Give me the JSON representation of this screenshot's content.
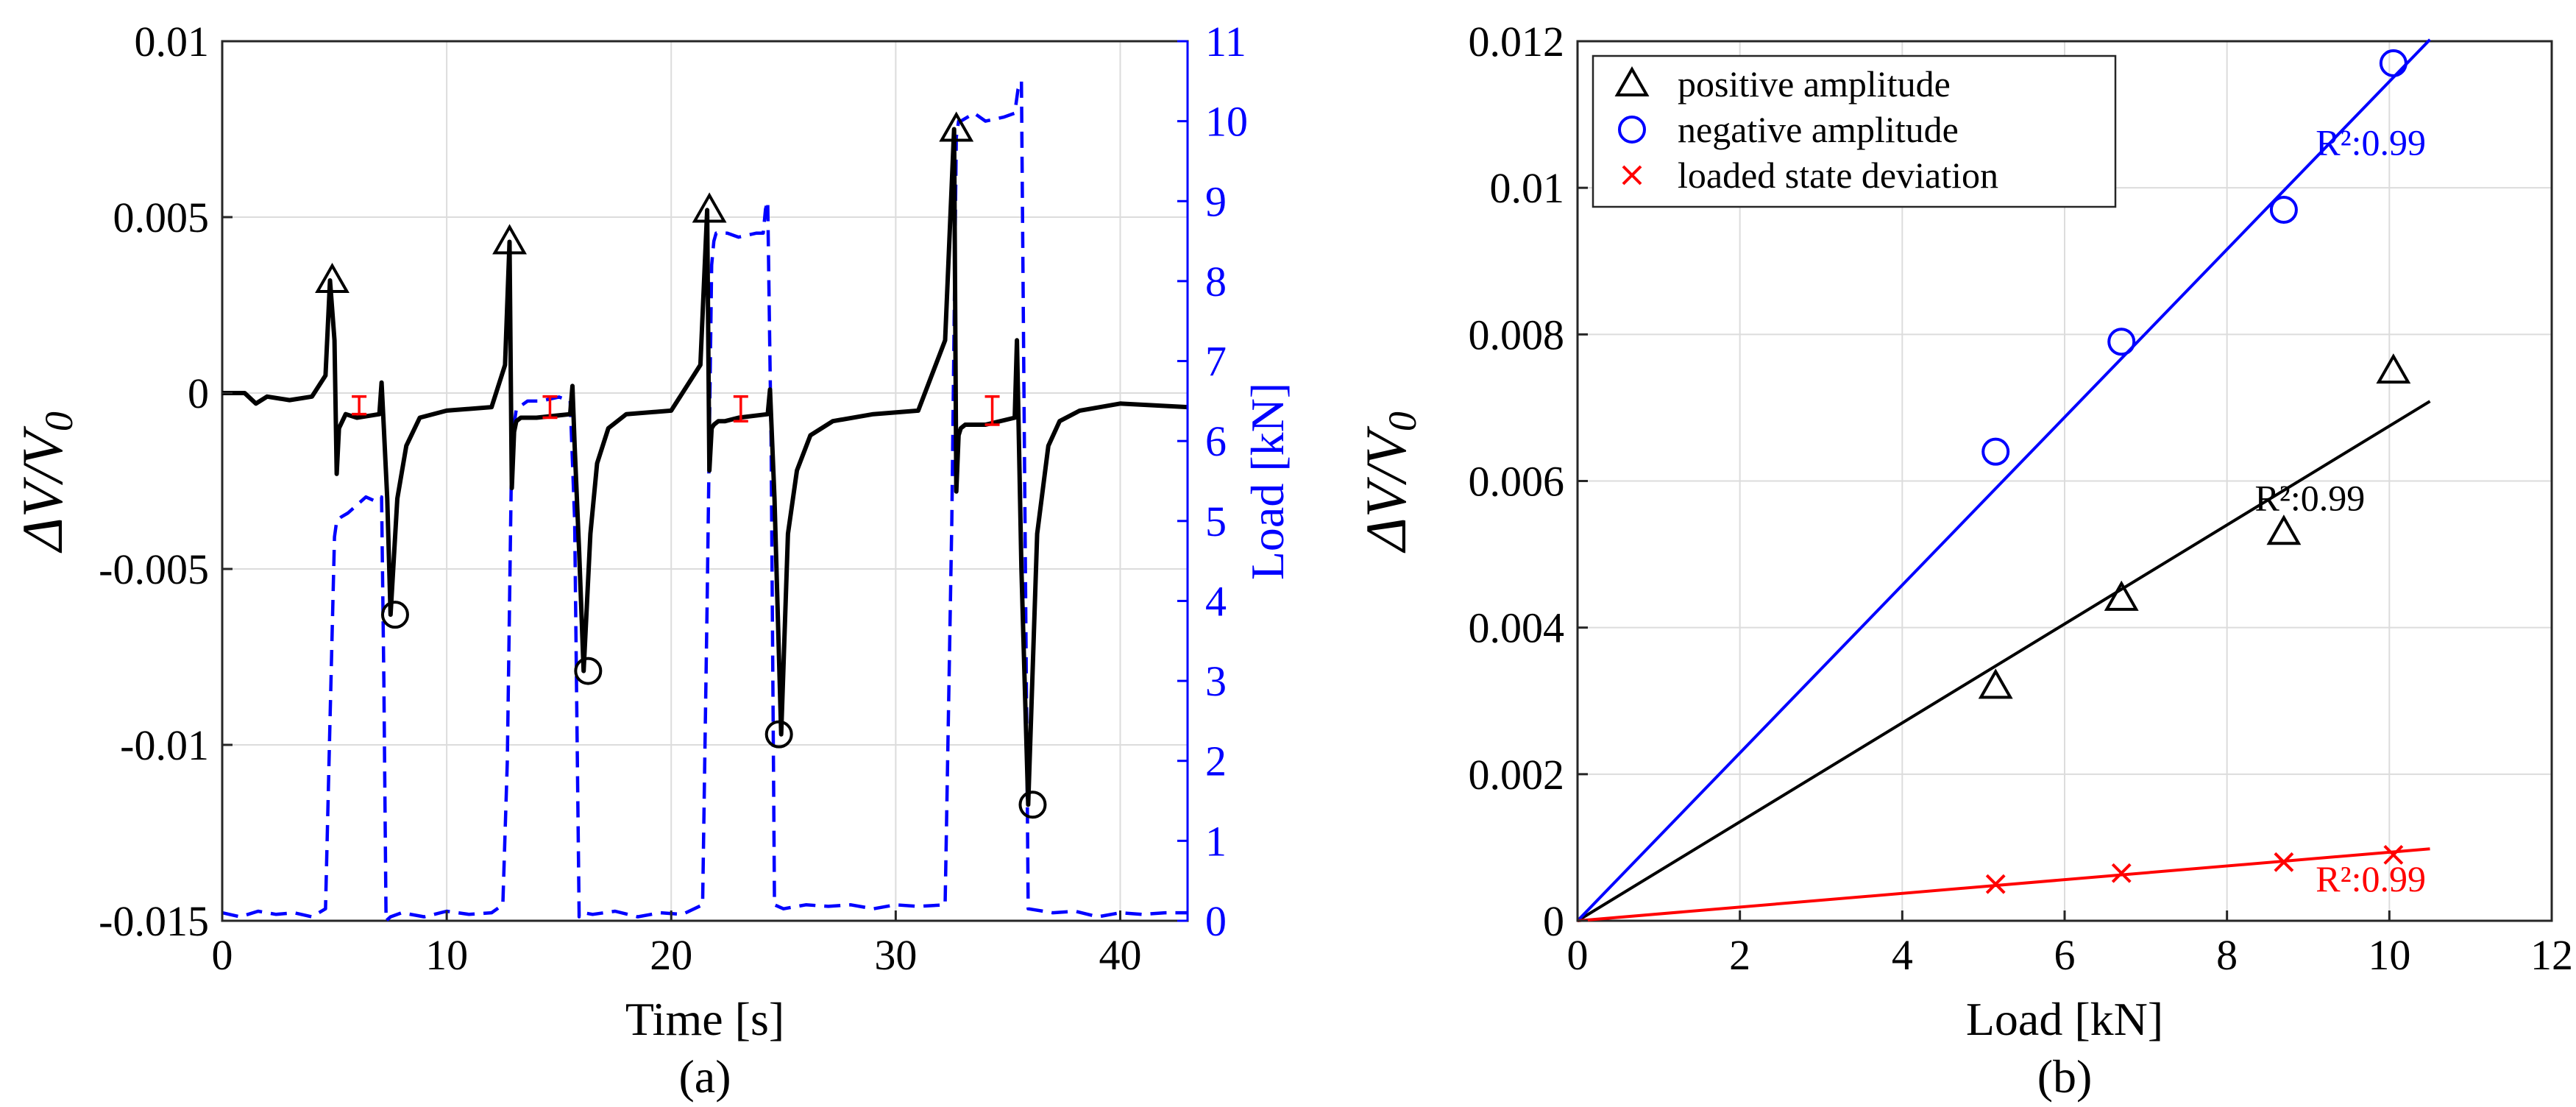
{
  "chart_data": [
    {
      "type": "line",
      "panel_label": "(a)",
      "xlabel": "Time [s]",
      "ylabel": "ΔV/V",
      "ylabel_sub": "0",
      "y2label": "Load [kN]",
      "xlim": [
        0,
        43
      ],
      "ylim": [
        -0.015,
        0.01
      ],
      "y2lim": [
        0,
        11
      ],
      "xticks": [
        "0",
        "10",
        "20",
        "30",
        "40"
      ],
      "yticks": [
        "-0.015",
        "-0.01",
        "-0.005",
        "0",
        "0.005",
        "0.01"
      ],
      "y2ticks": [
        "0",
        "1",
        "2",
        "3",
        "4",
        "5",
        "6",
        "7",
        "8",
        "9",
        "10",
        "11"
      ],
      "grid": true,
      "colors": {
        "signal": "#000000",
        "load": "#0000ff",
        "deviation": "#ff0000",
        "marker": "#000000"
      },
      "series": [
        {
          "name": "ΔV/V0",
          "axis": "left",
          "style": "solid",
          "x": [
            0,
            1,
            1.5,
            2,
            3,
            4,
            4.6,
            4.8,
            5.0,
            5.1,
            5.2,
            5.5,
            6,
            7,
            7.1,
            7.2,
            7.35,
            7.5,
            7.8,
            8.2,
            8.8,
            10,
            12,
            12.6,
            12.8,
            12.9,
            13.0,
            13.1,
            13.3,
            14,
            15.5,
            15.6,
            15.7,
            15.9,
            16.1,
            16.4,
            16.7,
            17.2,
            18,
            20,
            21.3,
            21.6,
            21.7,
            21.8,
            21.9,
            22.1,
            22.4,
            23,
            24.3,
            24.4,
            24.6,
            24.9,
            25.2,
            25.6,
            26.2,
            27.2,
            29,
            31,
            32.2,
            32.6,
            32.7,
            32.8,
            32.9,
            33.1,
            33.4,
            34,
            35.3,
            35.4,
            35.6,
            35.9,
            36.3,
            36.8,
            37.3,
            38.2,
            40,
            43
          ],
          "values": [
            0,
            0,
            -0.0003,
            -0.0001,
            -0.0002,
            -0.0001,
            0.0005,
            0.0032,
            0.0015,
            -0.0023,
            -0.001,
            -0.0006,
            -0.0007,
            -0.0006,
            0.0003,
            -0.001,
            -0.003,
            -0.0063,
            -0.003,
            -0.0015,
            -0.0007,
            -0.0005,
            -0.0004,
            0.0008,
            0.0043,
            -0.0027,
            -0.0011,
            -0.0008,
            -0.0007,
            -0.0007,
            -0.0006,
            0.0002,
            -0.0015,
            -0.0045,
            -0.0079,
            -0.004,
            -0.002,
            -0.001,
            -0.0006,
            -0.0005,
            0.0008,
            0.0052,
            -0.0022,
            -0.001,
            -0.0009,
            -0.0008,
            -0.0008,
            -0.0007,
            -0.0006,
            0.0001,
            -0.003,
            -0.0097,
            -0.004,
            -0.0022,
            -0.0012,
            -0.0008,
            -0.0006,
            -0.0005,
            0.0015,
            0.0075,
            -0.0028,
            -0.0012,
            -0.001,
            -0.0009,
            -0.0009,
            -0.0009,
            -0.0007,
            0.0015,
            -0.005,
            -0.0117,
            -0.004,
            -0.0015,
            -0.0008,
            -0.0005,
            -0.0003,
            -0.0004
          ]
        },
        {
          "name": "Load",
          "axis": "right",
          "style": "dashed",
          "x": [
            0,
            0.8,
            1.6,
            2.4,
            3.2,
            4.0,
            4.6,
            4.8,
            5.0,
            5.1,
            5.3,
            5.6,
            6.0,
            6.4,
            6.8,
            7.1,
            7.2,
            7.3,
            7.5,
            8.0,
            9.0,
            10.0,
            11.0,
            12.0,
            12.5,
            12.7,
            12.9,
            13.1,
            13.6,
            14.2,
            15.0,
            15.5,
            15.7,
            15.9,
            16.1,
            16.5,
            17.5,
            18.5,
            19.5,
            20.5,
            21.4,
            21.6,
            21.8,
            21.9,
            22.0,
            22.5,
            23.0,
            23.8,
            24.1,
            24.2,
            24.3,
            24.45,
            24.6,
            25.0,
            26.0,
            27.0,
            28.0,
            29.0,
            30.0,
            31.0,
            32.2,
            32.5,
            32.7,
            32.8,
            32.9,
            33.5,
            34.0,
            34.8,
            35.3,
            35.45,
            35.6,
            35.9,
            37.0,
            38.0,
            39.0,
            40.0,
            41.0,
            42.0,
            43.0
          ],
          "values": [
            0.1,
            0.05,
            0.12,
            0.08,
            0.1,
            0.05,
            0.15,
            2.5,
            4.8,
            5.0,
            5.05,
            5.1,
            5.2,
            5.3,
            5.25,
            5.3,
            3.0,
            0.0,
            0.05,
            0.1,
            0.05,
            0.12,
            0.08,
            0.1,
            0.2,
            2.0,
            6.0,
            6.4,
            6.5,
            6.5,
            6.55,
            6.5,
            5.0,
            0.05,
            0.1,
            0.08,
            0.12,
            0.05,
            0.1,
            0.08,
            0.2,
            4.0,
            8.2,
            8.5,
            8.6,
            8.6,
            8.55,
            8.6,
            8.6,
            8.9,
            9.0,
            6.0,
            0.2,
            0.15,
            0.2,
            0.18,
            0.2,
            0.15,
            0.2,
            0.18,
            0.2,
            5.0,
            9.8,
            10.0,
            10.0,
            10.1,
            10.0,
            10.05,
            10.1,
            10.4,
            10.5,
            0.15,
            0.1,
            0.12,
            0.05,
            0.1,
            0.08,
            0.1,
            0.1
          ]
        }
      ],
      "peak_markers": {
        "positive": {
          "symbol": "triangle",
          "x": [
            4.9,
            12.8,
            21.7,
            32.7
          ],
          "values": [
            0.0032,
            0.0043,
            0.0052,
            0.0075
          ]
        },
        "negative": {
          "symbol": "circle",
          "x": [
            7.7,
            16.3,
            24.8,
            36.1
          ],
          "values": [
            -0.0063,
            -0.0079,
            -0.0097,
            -0.0117
          ]
        }
      },
      "deviation_markers": {
        "x": [
          6.1,
          14.6,
          23.1,
          34.3
        ],
        "low": [
          -0.0006,
          -0.0007,
          -0.0008,
          -0.0009
        ],
        "high": [
          -0.0001,
          -0.0001,
          -0.0001,
          -0.0001
        ]
      }
    },
    {
      "type": "scatter",
      "panel_label": "(b)",
      "xlabel": "Load [kN]",
      "ylabel": "ΔV/V",
      "ylabel_sub": "0",
      "xlim": [
        0,
        12
      ],
      "ylim": [
        0,
        0.012
      ],
      "xticks": [
        "0",
        "2",
        "4",
        "6",
        "8",
        "10",
        "12"
      ],
      "yticks": [
        "0",
        "0.002",
        "0.004",
        "0.006",
        "0.008",
        "0.01",
        "0.012"
      ],
      "grid": true,
      "legend_position": "top-left",
      "series": [
        {
          "name": "positive amplitude",
          "marker": "triangle",
          "color": "#000000",
          "x": [
            5.15,
            6.7,
            8.7,
            10.05
          ],
          "values": [
            0.0032,
            0.0044,
            0.0053,
            0.0075
          ],
          "fit": {
            "slope": 0.000675,
            "x_end": 10.5,
            "r2_label": "R²:0.99"
          }
        },
        {
          "name": "negative amplitude",
          "marker": "circle",
          "color": "#0000ff",
          "x": [
            5.15,
            6.7,
            8.7,
            10.05
          ],
          "values": [
            0.0064,
            0.0079,
            0.0097,
            0.0117
          ],
          "fit": {
            "slope": 0.001145,
            "x_end": 10.5,
            "r2_label": "R²:0.99"
          }
        },
        {
          "name": "loaded state deviation",
          "marker": "x",
          "color": "#ff0000",
          "x": [
            5.15,
            6.7,
            8.7,
            10.05
          ],
          "values": [
            0.0005,
            0.00065,
            0.0008,
            0.0009
          ],
          "fit": {
            "slope": 9.35e-05,
            "x_end": 10.5,
            "r2_label": "R²:0.99"
          }
        }
      ]
    }
  ]
}
